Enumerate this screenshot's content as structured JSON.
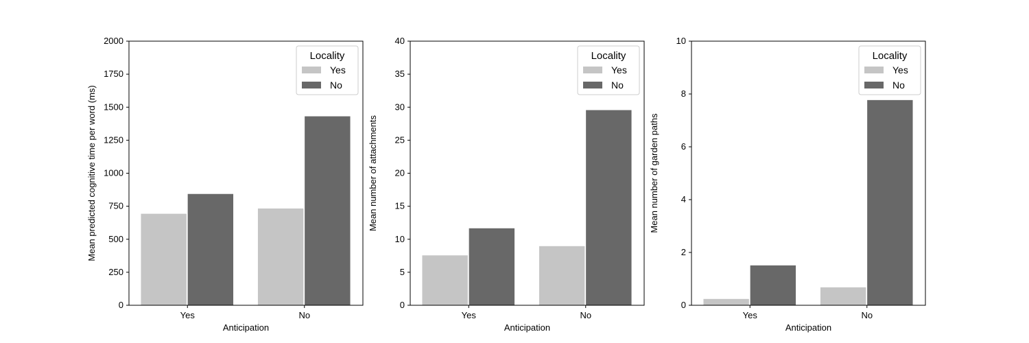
{
  "colors": {
    "locality_yes": "#c5c5c5",
    "locality_no": "#686868"
  },
  "chart_data": [
    {
      "type": "bar",
      "categories": [
        "Yes",
        "No"
      ],
      "xlabel": "Anticipation",
      "ylabel": "Mean predicted cognitive time per word (ms)",
      "ylim": [
        0,
        2000
      ],
      "yticks": [
        0,
        250,
        500,
        750,
        1000,
        1250,
        1500,
        1750,
        2000
      ],
      "legend_title": "Locality",
      "legend_position": "top-right",
      "series": [
        {
          "name": "Yes",
          "values": [
            695,
            735
          ]
        },
        {
          "name": "No",
          "values": [
            845,
            1433
          ]
        }
      ]
    },
    {
      "type": "bar",
      "categories": [
        "Yes",
        "No"
      ],
      "xlabel": "Anticipation",
      "ylabel": "Mean number of attachments",
      "ylim": [
        0,
        40
      ],
      "yticks": [
        0,
        5,
        10,
        15,
        20,
        25,
        30,
        35,
        40
      ],
      "legend_title": "Locality",
      "legend_position": "top-right",
      "series": [
        {
          "name": "Yes",
          "values": [
            7.6,
            9.0
          ]
        },
        {
          "name": "No",
          "values": [
            11.7,
            29.6
          ]
        }
      ]
    },
    {
      "type": "bar",
      "categories": [
        "Yes",
        "No"
      ],
      "xlabel": "Anticipation",
      "ylabel": "Mean number of garden paths",
      "ylim": [
        0,
        10
      ],
      "yticks": [
        0,
        2,
        4,
        6,
        8,
        10
      ],
      "legend_title": "Locality",
      "legend_position": "top-right",
      "series": [
        {
          "name": "Yes",
          "values": [
            0.25,
            0.69
          ]
        },
        {
          "name": "No",
          "values": [
            1.52,
            7.78
          ]
        }
      ]
    }
  ]
}
